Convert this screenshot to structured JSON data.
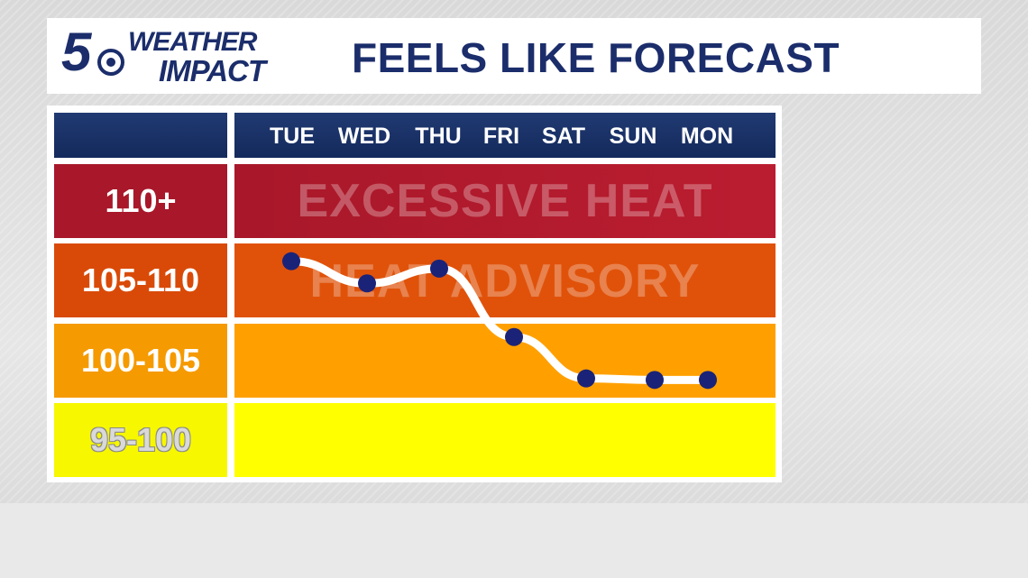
{
  "header": {
    "logo_number": "5",
    "logo_line1": "WEATHER",
    "logo_line2": "IMPACT",
    "title": "FEELS LIKE FORECAST"
  },
  "colors": {
    "navy": "#1b2d6b",
    "excessive_heat": "#b01c2c",
    "heat_advisory": "#e0520a",
    "range_100_105": "#ffa000",
    "range_95_100": "#ffff00",
    "line": "#ffffff",
    "points": "#1b2378"
  },
  "chart_data": {
    "type": "line",
    "title": "FEELS LIKE FORECAST",
    "categories": [
      "TUE",
      "WED",
      "THU",
      "FRI",
      "SAT",
      "SUN",
      "MON"
    ],
    "bands": [
      {
        "label": "110+",
        "min": 110,
        "max": 115,
        "name": "EXCESSIVE HEAT",
        "color": "#b01c2c"
      },
      {
        "label": "105-110",
        "min": 105,
        "max": 110,
        "name": "HEAT ADVISORY",
        "color": "#e0520a"
      },
      {
        "label": "100-105",
        "min": 100,
        "max": 105,
        "name": "",
        "color": "#ffa000"
      },
      {
        "label": "95-100",
        "min": 95,
        "max": 100,
        "name": "",
        "color": "#ffff00"
      }
    ],
    "series": [
      {
        "values": [
          108.8,
          107.3,
          108.3,
          104.1,
          101.3,
          101.2,
          101.2
        ]
      }
    ],
    "ylim": [
      95,
      115
    ],
    "grid": false,
    "legend": "none"
  }
}
